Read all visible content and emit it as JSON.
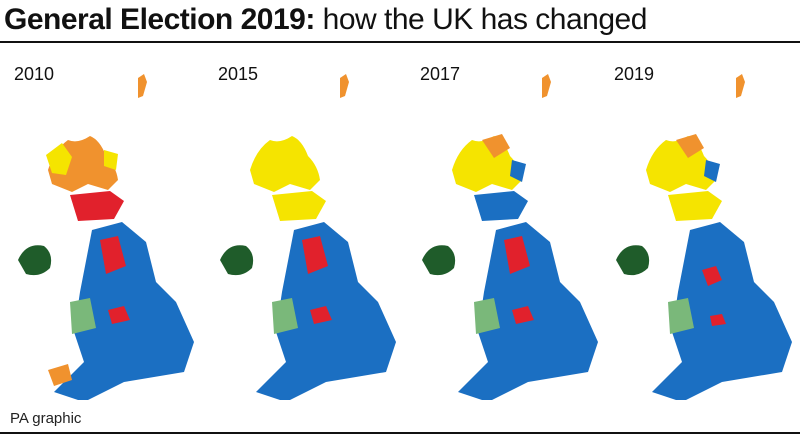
{
  "title": {
    "bold": "General Election 2019:",
    "light": "how the UK has changed"
  },
  "maps": [
    {
      "year": "2010",
      "scotland": "#f0922e",
      "highlands": "#f5e400",
      "ni": "#1f5c2a"
    },
    {
      "year": "2015",
      "scotland": "#f5e400",
      "highlands": "#f5e400",
      "ni": "#1f5c2a"
    },
    {
      "year": "2017",
      "scotland": "#f5e400",
      "highlands": "#f0922e",
      "ni": "#1f5c2a"
    },
    {
      "year": "2019",
      "scotland": "#f5e400",
      "highlands": "#f0922e",
      "ni": "#1f5c2a"
    }
  ],
  "colors": {
    "conservative": "#1b6fc2",
    "labour": "#e1212c",
    "libdem": "#f0922e",
    "snp": "#f5e400",
    "plaid": "#7ab87a",
    "dup": "#1f5c2a"
  },
  "credit": "PA graphic"
}
